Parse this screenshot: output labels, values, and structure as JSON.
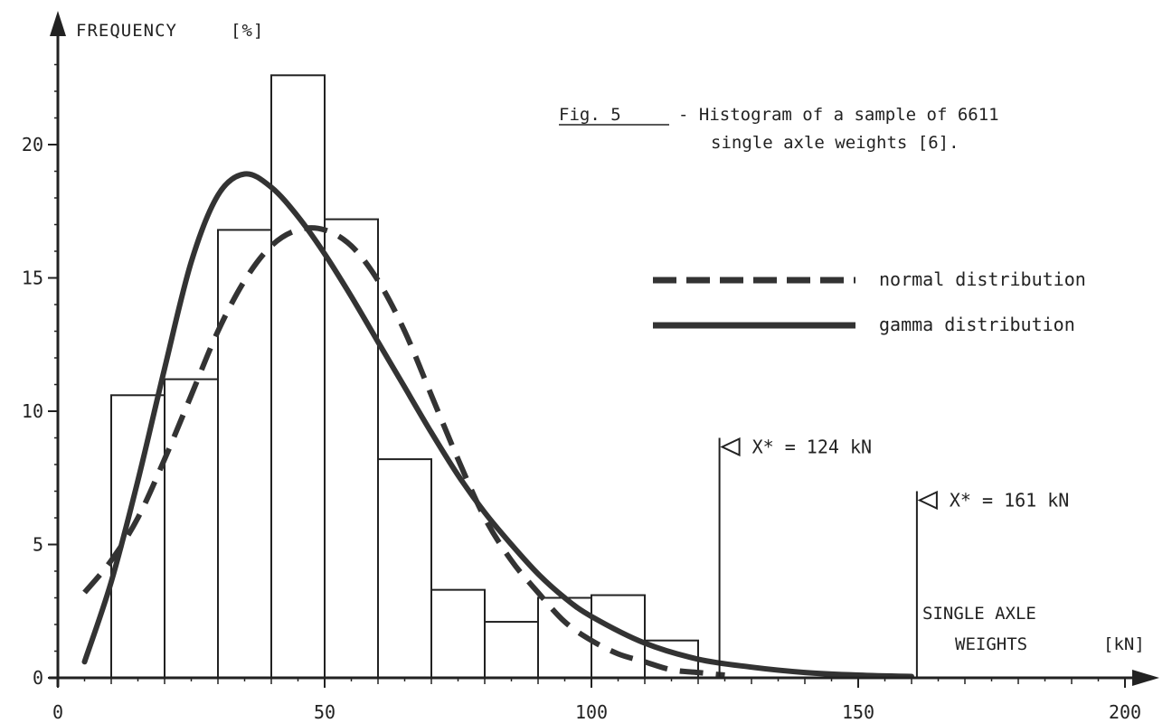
{
  "chart_data": {
    "type": "bar",
    "ylabel": "FREQUENCY",
    "ylabel_unit": "[%]",
    "xlabel_line1": "SINGLE AXLE",
    "xlabel_line2": "WEIGHTS",
    "xlabel_unit": "[kN]",
    "caption_ref": "Fig. 5",
    "caption_line1": "- Histogram of a sample of 6611",
    "caption_line2": "single axle weights [6].",
    "xlim": [
      0,
      200
    ],
    "ylim": [
      0,
      24
    ],
    "x_ticks": [
      0,
      50,
      100,
      150,
      200
    ],
    "y_ticks": [
      0,
      5,
      10,
      15,
      20
    ],
    "x_tick_labels": [
      "0",
      "50",
      "100",
      "150",
      "200"
    ],
    "y_tick_labels": [
      "0",
      "5",
      "10",
      "15",
      "20"
    ],
    "bins": [
      {
        "x0": 10,
        "x1": 20,
        "value": 10.6
      },
      {
        "x0": 20,
        "x1": 30,
        "value": 11.2
      },
      {
        "x0": 30,
        "x1": 40,
        "value": 16.8
      },
      {
        "x0": 40,
        "x1": 50,
        "value": 22.6
      },
      {
        "x0": 50,
        "x1": 60,
        "value": 17.2
      },
      {
        "x0": 60,
        "x1": 70,
        "value": 8.2
      },
      {
        "x0": 70,
        "x1": 80,
        "value": 3.3
      },
      {
        "x0": 80,
        "x1": 90,
        "value": 2.1
      },
      {
        "x0": 90,
        "x1": 100,
        "value": 3.0
      },
      {
        "x0": 100,
        "x1": 110,
        "value": 3.1
      },
      {
        "x0": 110,
        "x1": 120,
        "value": 1.4
      }
    ],
    "series": [
      {
        "name": "normal distribution",
        "style": "dashed",
        "x": [
          5,
          10,
          15,
          20,
          25,
          30,
          35,
          40,
          45,
          50,
          55,
          60,
          65,
          70,
          75,
          80,
          85,
          90,
          95,
          100,
          105,
          110,
          115,
          120,
          125
        ],
        "y": [
          3.2,
          4.4,
          6.0,
          8.2,
          10.6,
          13.0,
          14.9,
          16.2,
          16.8,
          16.8,
          16.2,
          14.9,
          13.0,
          10.6,
          8.2,
          6.0,
          4.4,
          3.2,
          2.1,
          1.4,
          0.9,
          0.6,
          0.3,
          0.2,
          0.1
        ]
      },
      {
        "name": "gamma distribution",
        "style": "solid",
        "x": [
          5,
          10,
          15,
          20,
          25,
          30,
          35,
          40,
          45,
          50,
          55,
          60,
          65,
          70,
          75,
          80,
          85,
          90,
          95,
          100,
          110,
          120,
          130,
          140,
          150,
          160
        ],
        "y": [
          0.6,
          3.6,
          7.4,
          11.6,
          15.6,
          18.1,
          18.9,
          18.4,
          17.3,
          15.9,
          14.3,
          12.6,
          10.9,
          9.2,
          7.6,
          6.2,
          5.0,
          3.9,
          3.0,
          2.3,
          1.3,
          0.7,
          0.4,
          0.2,
          0.1,
          0.05
        ]
      }
    ],
    "markers": [
      {
        "x": 124,
        "height": 9,
        "label": "X* = 124 kN"
      },
      {
        "x": 161,
        "height": 7,
        "label": "X* = 161 kN"
      }
    ],
    "legend_placement": "right",
    "grid": false
  }
}
